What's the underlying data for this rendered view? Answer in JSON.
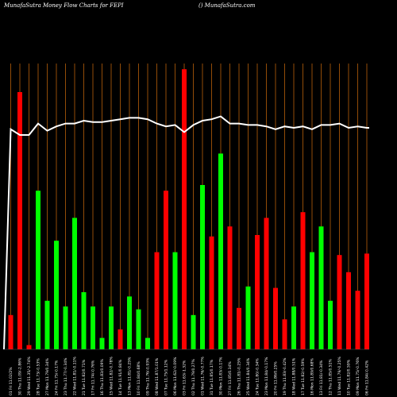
{
  "header": {
    "left": "MunafaSutra  Money Flow  Charts for FEPI",
    "right": "() MunafaSutra.com"
  },
  "chart_data": {
    "type": "bar",
    "title": "MunafaSutra  Money Flow  Charts for FEPI",
    "xlabel": "",
    "ylabel": "",
    "ylim": [
      0,
      100
    ],
    "grid": "vertical",
    "colors": {
      "background": "#000000",
      "up": "#00ff00",
      "down": "#ff0000",
      "line": "#ffffff",
      "grid": "#b8600a"
    },
    "categories": [
      "01 Fri 11.02/2%",
      "30 Thu 11.09/-2.86%",
      "29 Wed 11.35/-2.74%",
      "28 Tue 11.73/-0.53%",
      "27 Mon 11.79/0.34%",
      "24 Fri 11.75/-0.17%",
      "23 Thu 11.77/-0.34%",
      "22 Wed 11.81/-0.11%",
      "21 Tue 11.82/0.71%",
      "17 Fri 11.74/-0.76%",
      "16 Thu 11.83/0.09%",
      "15 Wed 11.82/-0.78%",
      "14 Tue 11.91/0.84%",
      "13 Mon 11.81/-0.25%",
      "10 Fri 11.84/0.68%",
      "09 Thu 11.76/-0.93%",
      "08 Wed 11.87/1.01%",
      "07 Tue 11.75/1.12%",
      "06 Mon 11.62/-0.09%",
      "03 Fri 11.63/-1.32%",
      "02 Thu 11.79/0.27%",
      "01 Wed 11.76/-0.77%",
      "31 Tue 11.85/0.17%",
      "30 Mon 11.83/-0.17%",
      "27 Fri 11.85/0.34%",
      "26 Thu 11.81/-0.25%",
      "25 Wed 11.84/0.34%",
      "24 Tue 11.80/-0.34%",
      "23 Mon 11.84/-0.17%",
      "20 Fri 11.86/0.25%",
      "19 Thu 11.83/-0.42%",
      "18 Wed 11.88/0.51%",
      "17 Tue 11.82/-0.59%",
      "16 Mon 11.89/0.68%",
      "13 Fri 11.81/-0.34%",
      "12 Thu 11.85/0.51%",
      "11 Wed 11.79/-0.25%",
      "10 Tue 11.82/0.59%",
      "09 Mon 11.75/-0.76%",
      "06 Fri 11.84/-0.42%"
    ],
    "series": [
      {
        "values": [
          12,
          90,
          1.5,
          55.5,
          17,
          38,
          15,
          46,
          20,
          15,
          4,
          15,
          7,
          18.5,
          14,
          4,
          34,
          55.5,
          34,
          98,
          12,
          57.5,
          39.5,
          68.5,
          43,
          14.5,
          22,
          40,
          46,
          21.5,
          10.5,
          15,
          48,
          34,
          43,
          17,
          33,
          27,
          20.5,
          33.5
        ],
        "up": [
          false,
          false,
          false,
          true,
          true,
          true,
          true,
          true,
          true,
          true,
          true,
          true,
          false,
          true,
          true,
          true,
          false,
          false,
          true,
          false,
          true,
          true,
          false,
          true,
          false,
          false,
          true,
          false,
          false,
          false,
          false,
          true,
          false,
          true,
          true,
          true,
          false,
          false,
          false,
          false
        ]
      },
      {
        "type": "line",
        "values": [
          77,
          75,
          75,
          79,
          76.5,
          78,
          79,
          79,
          80,
          79.5,
          79.5,
          80,
          80.5,
          81,
          81,
          80.5,
          79,
          78,
          78.5,
          76,
          78.5,
          80,
          80.5,
          81.5,
          79,
          79,
          78.5,
          78.5,
          78,
          77,
          78,
          77.5,
          78,
          77,
          78.5,
          78.5,
          79,
          77.5,
          78,
          77.5
        ]
      }
    ]
  }
}
